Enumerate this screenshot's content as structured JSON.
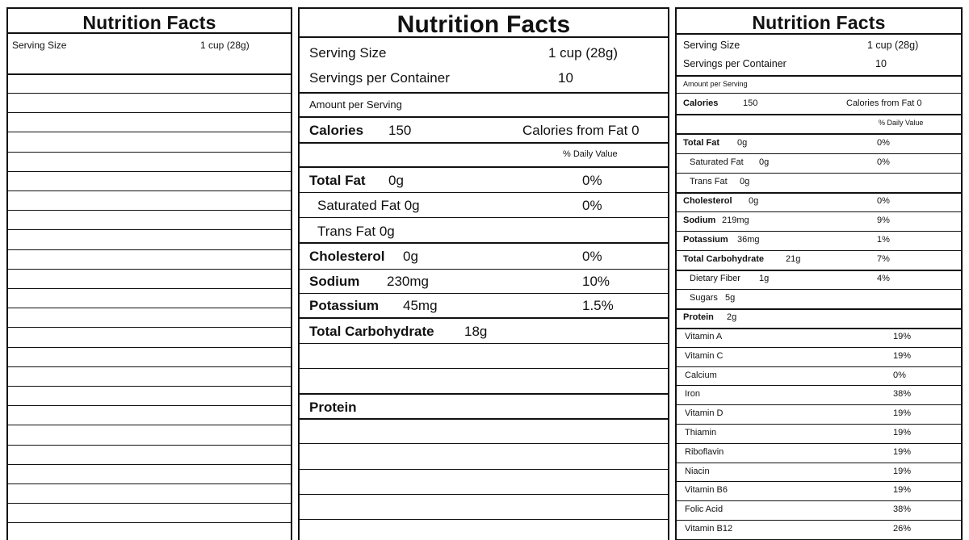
{
  "label_blank": {
    "title": "Nutrition Facts",
    "serving_size_label": "Serving Size",
    "serving_size_value": "1 cup  (28g)"
  },
  "label_basic": {
    "title": "Nutrition Facts",
    "serving_size_label": "Serving Size",
    "serving_size_value": "1 cup  (28g)",
    "servings_label": "Servings per Container",
    "servings_value": "10",
    "amount_per_serving": "Amount per Serving",
    "calories_label": "Calories",
    "calories_value": "150",
    "calories_from_fat": "Calories from Fat 0",
    "daily_value_header": "% Daily Value",
    "total_fat": "Total Fat",
    "total_fat_amount": "0g",
    "total_fat_dv": "0%",
    "saturated_fat": "Saturated Fat  0g",
    "saturated_fat_dv": "0%",
    "trans_fat": "Trans Fat  0g",
    "cholesterol": "Cholesterol",
    "cholesterol_amount": "0g",
    "cholesterol_dv": "0%",
    "sodium": "Sodium",
    "sodium_amount": "230mg",
    "sodium_dv": "10%",
    "potassium": "Potassium",
    "potassium_amount": "45mg",
    "potassium_dv": "1.5%",
    "total_carbohydrate": "Total Carbohydrate",
    "total_carbohydrate_amount": "18g",
    "protein": "Protein"
  },
  "label_full": {
    "title": "Nutrition Facts",
    "serving_size_label": "Serving Size",
    "serving_size_value": "1 cup  (28g)",
    "servings_label": "Servings per Container",
    "servings_value": "10",
    "amount_per_serving": "Amount per Serving",
    "calories_label": "Calories",
    "calories_value": "150",
    "calories_from_fat": "Calories from Fat 0",
    "daily_value_header": "% Daily Value",
    "rows": [
      {
        "name": "Total Fat",
        "amount": "0g",
        "dv": "0%"
      },
      {
        "name": "Saturated Fat",
        "amount": "0g",
        "dv": "0%"
      },
      {
        "name": "Trans Fat",
        "amount": "0g",
        "dv": ""
      },
      {
        "name": "Cholesterol",
        "amount": "0g",
        "dv": "0%"
      },
      {
        "name": "Sodium",
        "amount": "219mg",
        "dv": "9%"
      },
      {
        "name": "Potassium",
        "amount": "36mg",
        "dv": "1%"
      },
      {
        "name": "Total Carbohydrate",
        "amount": "21g",
        "dv": "7%"
      },
      {
        "name": "Dietary Fiber",
        "amount": "1g",
        "dv": "4%"
      },
      {
        "name": "Sugars",
        "amount": "5g",
        "dv": ""
      },
      {
        "name": "Protein",
        "amount": "2g",
        "dv": ""
      }
    ],
    "vitamins": [
      {
        "name": "Vitamin A",
        "dv": "19%"
      },
      {
        "name": "Vitamin C",
        "dv": "19%"
      },
      {
        "name": "Calcium",
        "dv": "0%"
      },
      {
        "name": "Iron",
        "dv": "38%"
      },
      {
        "name": "Vitamin D",
        "dv": "19%"
      },
      {
        "name": "Thiamin",
        "dv": "19%"
      },
      {
        "name": "Riboflavin",
        "dv": "19%"
      },
      {
        "name": "Niacin",
        "dv": "19%"
      },
      {
        "name": "Vitamin B6",
        "dv": "19%"
      },
      {
        "name": "Folic Acid",
        "dv": "38%"
      },
      {
        "name": "Vitamin B12",
        "dv": "26%"
      }
    ]
  }
}
